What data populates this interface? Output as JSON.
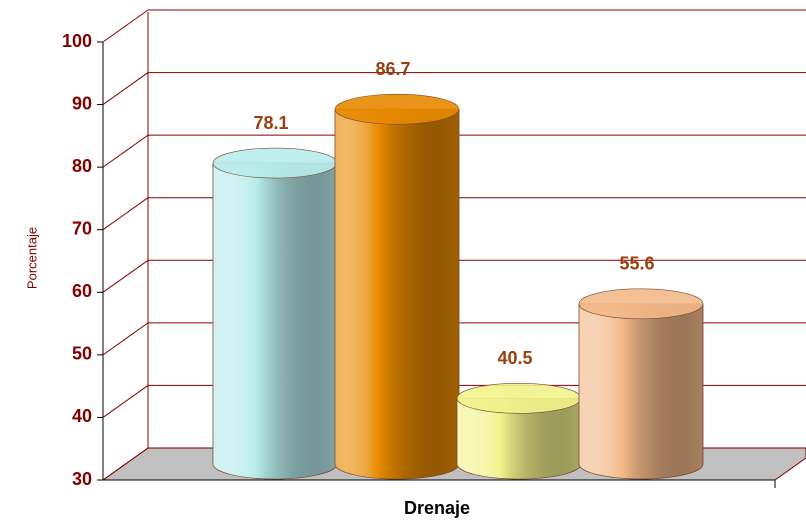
{
  "chart_data": {
    "type": "bar",
    "title_x": "Drenaje",
    "ylabel": "Porcentaje",
    "categories": [
      null,
      null,
      null,
      null
    ],
    "values": [
      78.1,
      86.7,
      40.5,
      55.6
    ],
    "colors": [
      "#b8ecec",
      "#e88a00",
      "#f2f28c",
      "#f2b888"
    ],
    "ylim": [
      30,
      100
    ],
    "yticks": [
      30,
      40,
      50,
      60,
      70,
      80,
      90,
      100
    ],
    "grid": true
  }
}
